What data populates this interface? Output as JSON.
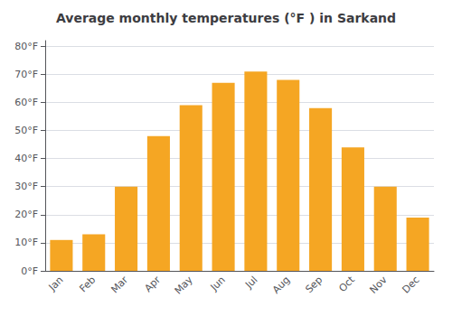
{
  "chart_data": {
    "type": "bar",
    "title": "Average monthly temperatures (°F ) in Sarkand",
    "categories": [
      "Jan",
      "Feb",
      "Mar",
      "Apr",
      "May",
      "Jun",
      "Jul",
      "Aug",
      "Sep",
      "Oct",
      "Nov",
      "Dec"
    ],
    "values": [
      11,
      13,
      30,
      48,
      59,
      67,
      71,
      68,
      58,
      44,
      30,
      19
    ],
    "color": "#F5A623",
    "ylim": [
      0,
      82
    ],
    "yticks": [
      {
        "value": 0,
        "label": "0°F"
      },
      {
        "value": 10,
        "label": "10°F"
      },
      {
        "value": 20,
        "label": "20°F"
      },
      {
        "value": 30,
        "label": "30°F"
      },
      {
        "value": 40,
        "label": "40°F"
      },
      {
        "value": 50,
        "label": "50°F"
      },
      {
        "value": 60,
        "label": "60°F"
      },
      {
        "value": 70,
        "label": "70°F"
      },
      {
        "value": 80,
        "label": "80°F"
      }
    ],
    "grid": true
  }
}
